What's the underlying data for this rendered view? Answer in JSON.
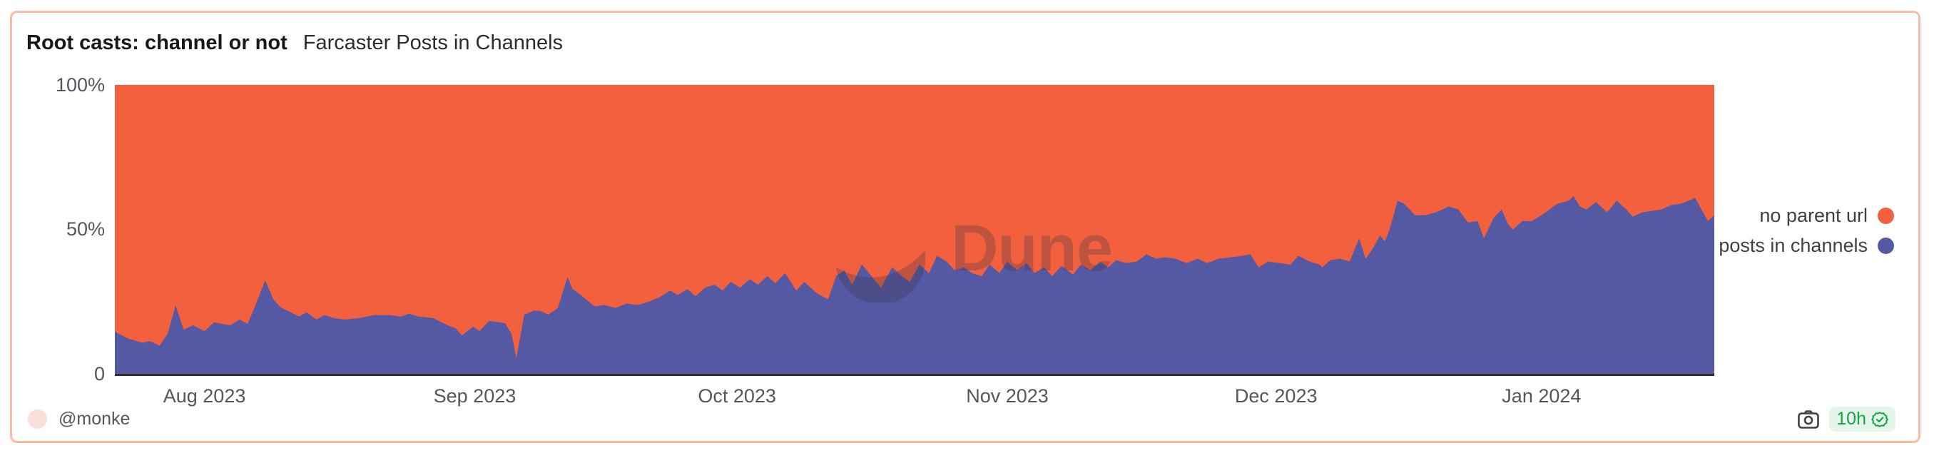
{
  "header": {
    "title": "Root casts: channel or not",
    "subtitle": "Farcaster Posts in Channels"
  },
  "watermark": {
    "text": "Dune"
  },
  "footer": {
    "author_handle": "@monke",
    "refresh_age": "10h"
  },
  "icons": {
    "camera": "camera-icon",
    "verified_seal": "check-seal-icon",
    "author_avatar": "avatar"
  },
  "colors": {
    "no_parent_url": "#F2603D",
    "posts_in_channels": "#5559A3",
    "card_border": "#F7BCA4",
    "badge_bg": "#E4F6EA",
    "badge_text": "#17A34A",
    "avatar_bg": "#FBE0DA",
    "axis_text": "#55555E",
    "axis_line": "#2E2E38",
    "title_text": "#18181B",
    "watermark_color": "#3B3548"
  },
  "chart_data": {
    "type": "area",
    "stacked": true,
    "normalized_to_percent": true,
    "title": "Root casts: channel or not",
    "subtitle": "Farcaster Posts in Channels",
    "ylim": [
      0,
      100
    ],
    "grid": false,
    "legend_position": "right",
    "y_ticks": [
      "100%",
      "50%",
      "0"
    ],
    "x_ticks": [
      {
        "label": "Aug 2023",
        "x_pct": 5.6
      },
      {
        "label": "Sep 2023",
        "x_pct": 22.5
      },
      {
        "label": "Oct 2023",
        "x_pct": 38.9
      },
      {
        "label": "Nov 2023",
        "x_pct": 55.8
      },
      {
        "label": "Dec 2023",
        "x_pct": 72.6
      },
      {
        "label": "Jan 2024",
        "x_pct": 89.2
      }
    ],
    "x_range": [
      "late Jul 2023",
      "late Jan 2024"
    ],
    "legend": [
      {
        "label": "no parent url",
        "color": "#F2603D"
      },
      {
        "label": "posts in channels",
        "color": "#5559A3"
      }
    ],
    "series": [
      {
        "name": "no parent url",
        "color": "#F2603D",
        "values": "100 minus 'posts in channels' at every x (stacked to 100%)"
      },
      {
        "name": "posts in channels",
        "color": "#5559A3",
        "points_x_pct_value_pct": [
          [
            0,
            14.8
          ],
          [
            0.8,
            12.5
          ],
          [
            1.7,
            11
          ],
          [
            2.2,
            11.5
          ],
          [
            2.8,
            10
          ],
          [
            3.3,
            14
          ],
          [
            3.8,
            23.9
          ],
          [
            4.3,
            15.5
          ],
          [
            4.9,
            17
          ],
          [
            5.6,
            15
          ],
          [
            6.2,
            18
          ],
          [
            6.7,
            17.5
          ],
          [
            7.2,
            17
          ],
          [
            7.8,
            19
          ],
          [
            8.3,
            17.5
          ],
          [
            8.8,
            24
          ],
          [
            9.4,
            32.5
          ],
          [
            9.9,
            26
          ],
          [
            10.4,
            23
          ],
          [
            11,
            21.5
          ],
          [
            11.5,
            20
          ],
          [
            12,
            21.5
          ],
          [
            12.6,
            19
          ],
          [
            13.1,
            20.5
          ],
          [
            13.7,
            19.5
          ],
          [
            14.4,
            19
          ],
          [
            15.3,
            19.5
          ],
          [
            16.2,
            20.5
          ],
          [
            17.2,
            20.5
          ],
          [
            17.9,
            20
          ],
          [
            18.4,
            21
          ],
          [
            19,
            20
          ],
          [
            19.9,
            19.5
          ],
          [
            20.8,
            17
          ],
          [
            21.3,
            16
          ],
          [
            21.7,
            13.5
          ],
          [
            22.4,
            16.5
          ],
          [
            22.8,
            15
          ],
          [
            23.4,
            18.5
          ],
          [
            24.1,
            18
          ],
          [
            24.4,
            17.7
          ],
          [
            24.8,
            14
          ],
          [
            25.1,
            5.7
          ],
          [
            25.6,
            20.7
          ],
          [
            26.2,
            22
          ],
          [
            26.6,
            22
          ],
          [
            27.1,
            20.7
          ],
          [
            27.7,
            23
          ],
          [
            28.3,
            33.7
          ],
          [
            28.6,
            29.6
          ],
          [
            29.1,
            27.6
          ],
          [
            30,
            23.5
          ],
          [
            30.6,
            24
          ],
          [
            31.3,
            23
          ],
          [
            32,
            24.5
          ],
          [
            32.7,
            24
          ],
          [
            33.3,
            25
          ],
          [
            34,
            26.5
          ],
          [
            34.7,
            29
          ],
          [
            35.2,
            27.5
          ],
          [
            35.8,
            29.5
          ],
          [
            36.3,
            27
          ],
          [
            36.9,
            30
          ],
          [
            37.5,
            31
          ],
          [
            38,
            29
          ],
          [
            38.5,
            32
          ],
          [
            39.1,
            30
          ],
          [
            39.7,
            33
          ],
          [
            40.2,
            31
          ],
          [
            40.8,
            34
          ],
          [
            41.3,
            31.5
          ],
          [
            41.9,
            35
          ],
          [
            42.6,
            29
          ],
          [
            43.1,
            32
          ],
          [
            43.9,
            28
          ],
          [
            44.6,
            26
          ],
          [
            45.1,
            34
          ],
          [
            45.6,
            36
          ],
          [
            46.1,
            31
          ],
          [
            46.7,
            38
          ],
          [
            47.3,
            34
          ],
          [
            47.9,
            30
          ],
          [
            48.6,
            37
          ],
          [
            49.2,
            34
          ],
          [
            49.7,
            32
          ],
          [
            50.3,
            38
          ],
          [
            50.9,
            35
          ],
          [
            51.4,
            41
          ],
          [
            52,
            39
          ],
          [
            52.5,
            36
          ],
          [
            53.1,
            37
          ],
          [
            53.6,
            35
          ],
          [
            54.2,
            34
          ],
          [
            54.7,
            38
          ],
          [
            55.3,
            35
          ],
          [
            55.8,
            39
          ],
          [
            56.4,
            36
          ],
          [
            57,
            38.5
          ],
          [
            57.5,
            35
          ],
          [
            58.1,
            37
          ],
          [
            58.6,
            34
          ],
          [
            59.2,
            37.5
          ],
          [
            59.9,
            34.5
          ],
          [
            60.4,
            38
          ],
          [
            61,
            36
          ],
          [
            61.6,
            39
          ],
          [
            62.1,
            37
          ],
          [
            62.6,
            39.5
          ],
          [
            63.2,
            38.5
          ],
          [
            63.9,
            39
          ],
          [
            64.5,
            41.5
          ],
          [
            65.1,
            40
          ],
          [
            65.7,
            40.5
          ],
          [
            66.3,
            40
          ],
          [
            67,
            38.5
          ],
          [
            67.7,
            40
          ],
          [
            68.3,
            38.5
          ],
          [
            69,
            40
          ],
          [
            69.8,
            40.5
          ],
          [
            70.5,
            41
          ],
          [
            71,
            41.5
          ],
          [
            71.5,
            37
          ],
          [
            72.1,
            39
          ],
          [
            72.8,
            38.5
          ],
          [
            73.5,
            38
          ],
          [
            74,
            41
          ],
          [
            74.7,
            39
          ],
          [
            75.3,
            38
          ],
          [
            75.5,
            37
          ],
          [
            76,
            39.5
          ],
          [
            76.6,
            40
          ],
          [
            77.2,
            39
          ],
          [
            77.8,
            47
          ],
          [
            78.2,
            40
          ],
          [
            78.6,
            43
          ],
          [
            79.1,
            48
          ],
          [
            79.4,
            46
          ],
          [
            79.7,
            50
          ],
          [
            80.2,
            60
          ],
          [
            80.6,
            59
          ],
          [
            81.3,
            55
          ],
          [
            81.9,
            55
          ],
          [
            82.6,
            56
          ],
          [
            83.4,
            58
          ],
          [
            84,
            57
          ],
          [
            84.6,
            52.5
          ],
          [
            85.2,
            53
          ],
          [
            85.6,
            47
          ],
          [
            86.2,
            54
          ],
          [
            86.7,
            57
          ],
          [
            87.1,
            52
          ],
          [
            87.4,
            50
          ],
          [
            88,
            53
          ],
          [
            88.6,
            53
          ],
          [
            89.2,
            55
          ],
          [
            89.7,
            57
          ],
          [
            90.2,
            59
          ],
          [
            90.9,
            60
          ],
          [
            91.2,
            61.6
          ],
          [
            91.6,
            58
          ],
          [
            92,
            57
          ],
          [
            92.6,
            59.5
          ],
          [
            93.3,
            56
          ],
          [
            93.9,
            60
          ],
          [
            94.5,
            57
          ],
          [
            94.9,
            54.5
          ],
          [
            95.5,
            56
          ],
          [
            96.1,
            56.5
          ],
          [
            96.7,
            57
          ],
          [
            97.3,
            58.5
          ],
          [
            97.9,
            59
          ],
          [
            98.4,
            60
          ],
          [
            98.8,
            61
          ],
          [
            99.3,
            56
          ],
          [
            99.6,
            53
          ],
          [
            100,
            55
          ]
        ]
      }
    ]
  }
}
